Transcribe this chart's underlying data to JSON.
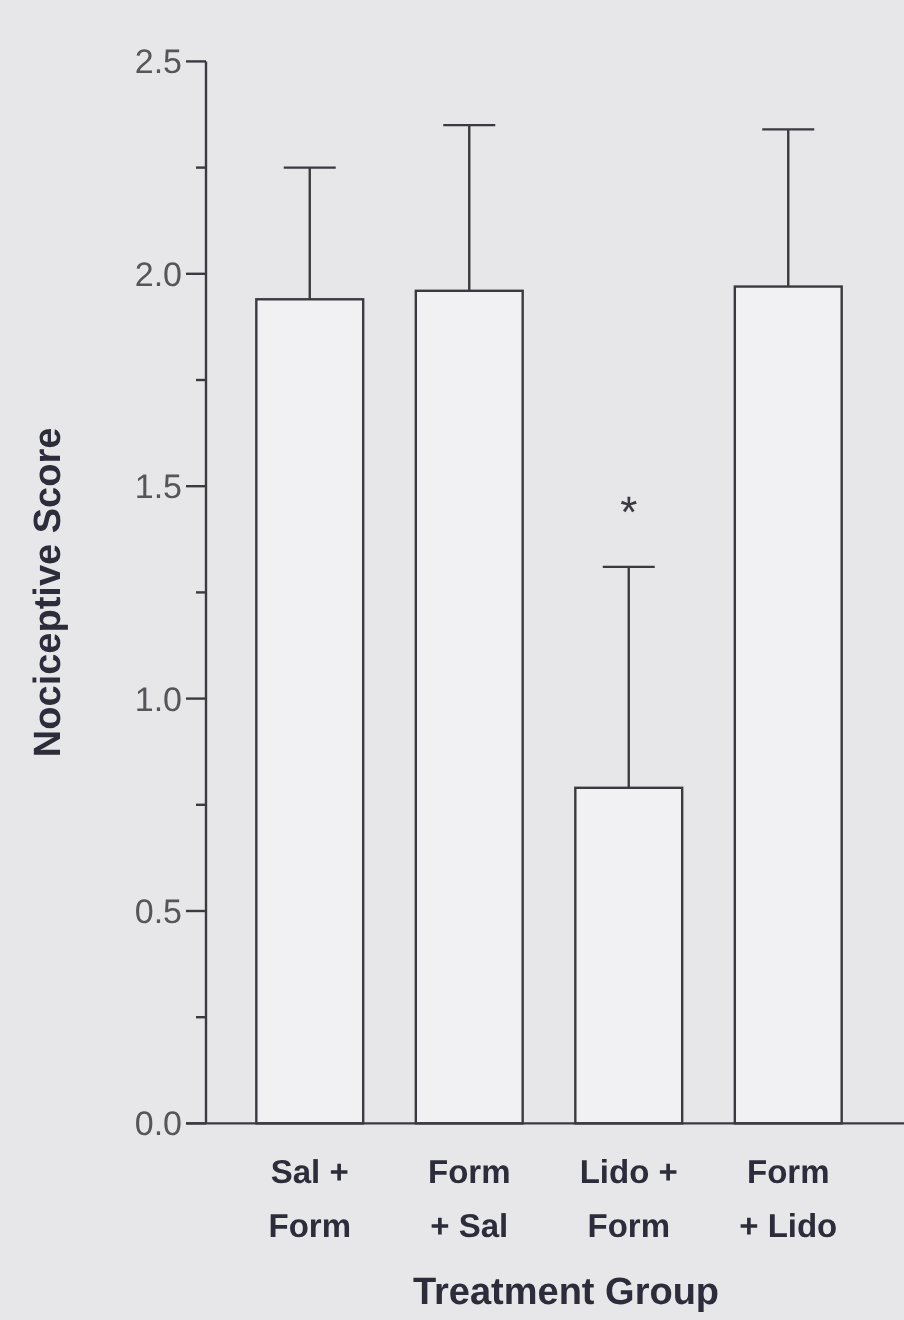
{
  "chart_data": {
    "type": "bar",
    "xlabel": "Treatment Group",
    "ylabel": "Nociceptive Score",
    "categories": [
      "Sal +\nForm",
      "Form\n+ Sal",
      "Lido +\nForm",
      "Form\n+ Lido"
    ],
    "values": [
      1.94,
      1.96,
      0.79,
      1.97
    ],
    "errors": [
      [
        1.94,
        2.25
      ],
      [
        1.96,
        2.35
      ],
      [
        0.79,
        1.31
      ],
      [
        1.97,
        2.34
      ]
    ],
    "color": "#f1f1f3",
    "ylim": [
      0,
      2.5
    ],
    "yticks": [
      {
        "value": 0,
        "label": "0.0"
      },
      {
        "value": 0.25,
        "label": null
      },
      {
        "value": 0.5,
        "label": "0.5"
      },
      {
        "value": 0.75,
        "label": null
      },
      {
        "value": 1.0,
        "label": "1.0"
      },
      {
        "value": 1.25,
        "label": null
      },
      {
        "value": 1.5,
        "label": "1.5"
      },
      {
        "value": 1.75,
        "label": null
      },
      {
        "value": 2.0,
        "label": "2.0"
      },
      {
        "value": 2.25,
        "label": null
      },
      {
        "value": 2.5,
        "label": "2.5"
      }
    ],
    "annotations": [
      "*"
    ]
  }
}
